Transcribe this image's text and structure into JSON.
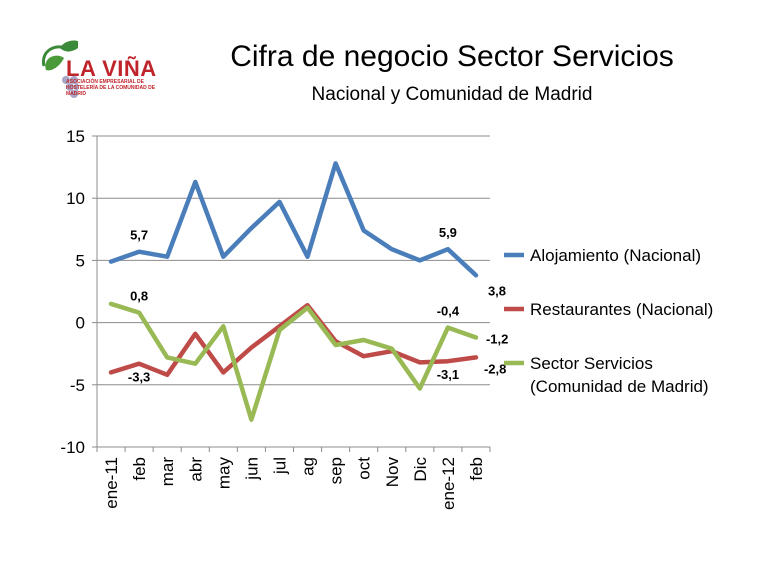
{
  "logo": {
    "name": "LA VIÑA",
    "tagline": "ASOCIACIÓN EMPRESARIAL DE HOSTELERÍA DE LA COMUNIDAD DE MADRID"
  },
  "chart_data": {
    "type": "line",
    "title": "Cifra de negocio Sector Servicios",
    "subtitle": "Nacional y Comunidad de Madrid",
    "xlabel": "",
    "ylabel": "",
    "categories": [
      "ene-11",
      "feb",
      "mar",
      "abr",
      "may",
      "jun",
      "jul",
      "ag",
      "sep",
      "oct",
      "Nov",
      "Dic",
      "ene-12",
      "feb"
    ],
    "ylim": [
      -10,
      15
    ],
    "yticks": [
      15,
      10,
      5,
      0,
      -5,
      -10
    ],
    "grid": true,
    "legend_position": "right",
    "series": [
      {
        "name": "Alojamiento (Nacional)",
        "color": "#4a7ebb",
        "values": [
          4.9,
          5.7,
          5.3,
          11.3,
          5.3,
          7.6,
          9.7,
          5.3,
          12.8,
          7.4,
          5.9,
          5.0,
          5.9,
          3.8
        ],
        "labels": [
          {
            "index": 1,
            "text": "5,7"
          },
          {
            "index": 12,
            "text": "5,9"
          },
          {
            "index": 13,
            "text": "3,8"
          }
        ]
      },
      {
        "name": "Restaurantes (Nacional)",
        "color": "#be4b48",
        "values": [
          -4.0,
          -3.3,
          -4.2,
          -0.9,
          -4.0,
          -2.0,
          -0.3,
          1.4,
          -1.5,
          -2.7,
          -2.3,
          -3.2,
          -3.1,
          -2.8
        ],
        "labels": [
          {
            "index": 1,
            "text": "-3,3"
          },
          {
            "index": 12,
            "text": "-3,1"
          },
          {
            "index": 13,
            "text": "-2,8"
          }
        ]
      },
      {
        "name": "Sector Servicios (Comunidad de Madrid)",
        "legend_lines": [
          "Sector Servicios",
          "(Comunidad de Madrid)"
        ],
        "color": "#98b954",
        "values": [
          1.5,
          0.8,
          -2.8,
          -3.3,
          -0.3,
          -7.8,
          -0.6,
          1.2,
          -1.8,
          -1.4,
          -2.1,
          -5.3,
          -0.4,
          -1.2
        ],
        "labels": [
          {
            "index": 1,
            "text": "0,8"
          },
          {
            "index": 12,
            "text": "-0,4"
          },
          {
            "index": 13,
            "text": "-1,2"
          }
        ]
      }
    ]
  }
}
